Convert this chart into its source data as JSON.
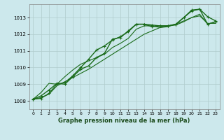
{
  "background_color": "#cce8ec",
  "grid_color": "#b0cccc",
  "line_color": "#1a6b1a",
  "marker_color": "#1a6b1a",
  "xlabel": "Graphe pression niveau de la mer (hPa)",
  "xlim": [
    -0.5,
    23.5
  ],
  "ylim": [
    1007.5,
    1013.8
  ],
  "yticks": [
    1008,
    1009,
    1010,
    1011,
    1012,
    1013
  ],
  "xticks": [
    0,
    1,
    2,
    3,
    4,
    5,
    6,
    7,
    8,
    9,
    10,
    11,
    12,
    13,
    14,
    15,
    16,
    17,
    18,
    19,
    20,
    21,
    22,
    23
  ],
  "series": [
    {
      "y": [
        1008.1,
        1008.15,
        1008.45,
        1009.0,
        1009.1,
        1009.5,
        1010.0,
        1010.5,
        1011.05,
        1011.3,
        1011.65,
        1011.85,
        1012.15,
        1012.6,
        1012.6,
        1012.55,
        1012.5,
        1012.5,
        1012.6,
        1013.0,
        1013.45,
        1013.5,
        1013.05,
        1012.8
      ],
      "marker": true,
      "lw": 1.0
    },
    {
      "y": [
        1008.1,
        1008.3,
        1008.65,
        1009.05,
        1009.0,
        1009.45,
        1009.9,
        1010.1,
        1010.6,
        1010.85,
        1011.7,
        1011.8,
        1012.2,
        1012.6,
        1012.6,
        1012.45,
        1012.5,
        1012.5,
        1012.6,
        1013.0,
        1013.4,
        1013.5,
        1012.6,
        1012.75
      ],
      "marker": true,
      "lw": 1.0
    },
    {
      "y": [
        1008.1,
        1008.5,
        1009.05,
        1009.0,
        1009.45,
        1009.85,
        1010.2,
        1010.4,
        1010.6,
        1010.8,
        1011.2,
        1011.45,
        1011.75,
        1012.3,
        1012.5,
        1012.5,
        1012.4,
        1012.45,
        1012.6,
        1012.8,
        1013.0,
        1013.2,
        1012.6,
        1012.75
      ],
      "marker": false,
      "lw": 0.8
    },
    {
      "y": [
        1008.1,
        1008.2,
        1008.4,
        1008.9,
        1009.15,
        1009.4,
        1009.65,
        1009.9,
        1010.2,
        1010.5,
        1010.8,
        1011.1,
        1011.4,
        1011.7,
        1012.0,
        1012.2,
        1012.4,
        1012.5,
        1012.55,
        1012.75,
        1013.0,
        1013.1,
        1012.65,
        1012.65
      ],
      "marker": false,
      "lw": 0.8
    }
  ]
}
